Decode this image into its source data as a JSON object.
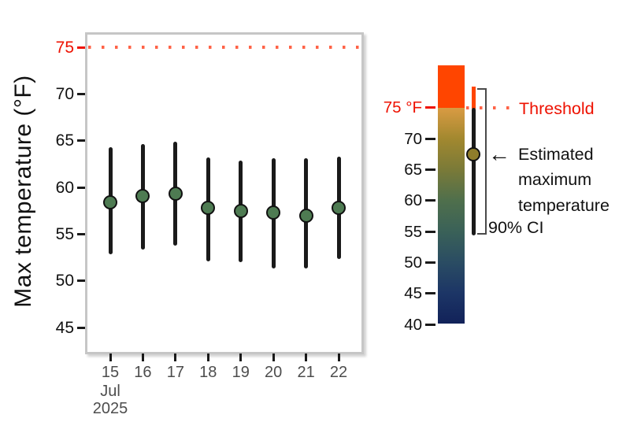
{
  "figure": {
    "y_axis_title": "Max temperature (°F)"
  },
  "chart_data": {
    "type": "scatter",
    "title": "",
    "ylabel": "Max temperature (°F)",
    "xlabel_month": "Jul",
    "xlabel_year": "2025",
    "categories": [
      "15",
      "16",
      "17",
      "18",
      "19",
      "20",
      "21",
      "22"
    ],
    "yticks": [
      75,
      70,
      65,
      60,
      55,
      50,
      45
    ],
    "ylim": [
      42.5,
      76.5
    ],
    "grid": false,
    "legend_position": "right",
    "threshold": {
      "value": 75,
      "label": "Threshold"
    },
    "series": [
      {
        "name": "Estimated maximum temperature",
        "values": [
          58.4,
          59.1,
          59.3,
          57.8,
          57.5,
          57.3,
          57.0,
          57.8
        ]
      },
      {
        "name": "90% CI lower",
        "values": [
          52.8,
          53.3,
          53.8,
          52.1,
          52.0,
          51.3,
          51.3,
          52.3
        ]
      },
      {
        "name": "90% CI upper",
        "values": [
          64.3,
          64.6,
          64.9,
          63.2,
          62.9,
          63.1,
          63.1,
          63.3
        ]
      }
    ]
  },
  "legend": {
    "colorbar": {
      "tick_labels": [
        "75 °F",
        "70",
        "65",
        "60",
        "55",
        "50",
        "45",
        "40"
      ],
      "tick_values": [
        75,
        70,
        65,
        60,
        55,
        50,
        45,
        40
      ],
      "top_value": 82,
      "bottom_value": 40,
      "gradient": [
        {
          "pct": 0,
          "color": "#ff4500"
        },
        {
          "pct": 16.4,
          "color": "#ff4500"
        },
        {
          "pct": 16.5,
          "color": "#d99b43"
        },
        {
          "pct": 28.4,
          "color": "#a2882f"
        },
        {
          "pct": 40.4,
          "color": "#7a7a38"
        },
        {
          "pct": 52.4,
          "color": "#4f6f4c"
        },
        {
          "pct": 64.4,
          "color": "#3a6158"
        },
        {
          "pct": 76.4,
          "color": "#2a4c63"
        },
        {
          "pct": 88.4,
          "color": "#1c3566"
        },
        {
          "pct": 100,
          "color": "#122259"
        }
      ]
    },
    "threshold_label": "Threshold",
    "arrow_glyph": "←",
    "estimate_label_lines": [
      "Estimated",
      "maximum",
      "temperature"
    ],
    "ci_label": "90% CI",
    "example_point": {
      "value": 67.4,
      "ci_low": 54.4,
      "ci_high": 78.4
    }
  },
  "colors": {
    "red_label": "#ee1100",
    "threshold_dots": "#ff6347",
    "above_threshold": "#ff4500",
    "point_fill": "#4e7b52",
    "legend_point_fill": "#8f7d2b",
    "bar_color": "#1a1a1a",
    "axis_text_gray": "#4d4d4d",
    "panel_border": "#c6c6c6",
    "text_black": "#111111"
  }
}
